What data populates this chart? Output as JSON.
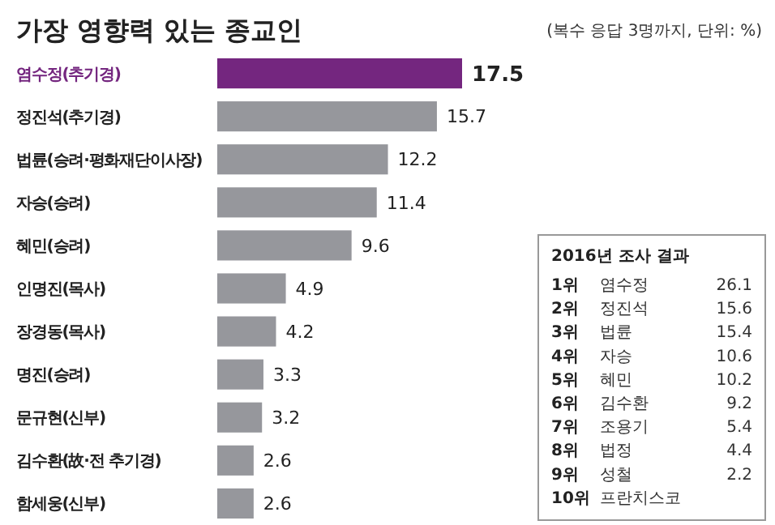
{
  "chart_data": {
    "type": "bar",
    "orientation": "horizontal",
    "title": "가장 영향력 있는 종교인",
    "subtitle": "(복수 응답 3명까지, 단위: %)",
    "categories": [
      "염수정(추기경)",
      "정진석(추기경)",
      "법륜(승려·평화재단이사장)",
      "자승(승려)",
      "혜민(승려)",
      "인명진(목사)",
      "장경동(목사)",
      "명진(승려)",
      "문규현(신부)",
      "김수환(故·전 추기경)",
      "함세웅(신부)"
    ],
    "values": [
      17.5,
      15.7,
      12.2,
      11.4,
      9.6,
      4.9,
      4.2,
      3.3,
      3.2,
      2.6,
      2.6
    ],
    "colors": [
      "#74267f",
      "#96979c",
      "#96979c",
      "#96979c",
      "#96979c",
      "#96979c",
      "#96979c",
      "#96979c",
      "#96979c",
      "#96979c",
      "#96979c"
    ],
    "data_labels": true,
    "annotations": [
      "2016년 조사 결과",
      "1위 염수정 26.1",
      "2위 정진석 15.6",
      "3위 법륜 15.4",
      "4위 자승 10.6",
      "5위 혜민 10.2",
      "6위 김수환 9.2",
      "7위 조용기 5.4",
      "8위 법정 4.4",
      "9위 성철 2.2",
      "10위 프란치스코"
    ]
  }
}
